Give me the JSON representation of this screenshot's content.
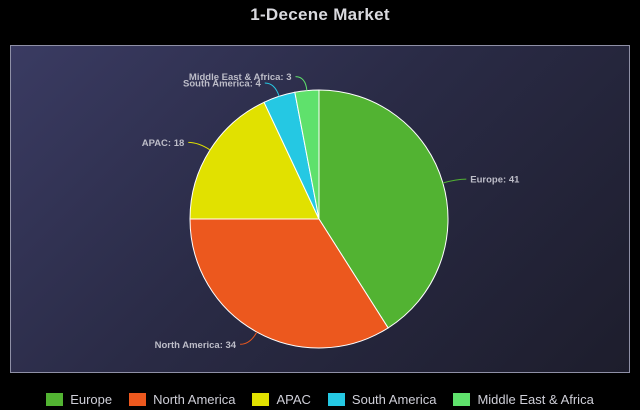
{
  "chart_data": {
    "type": "pie",
    "title": "1-Decene Market",
    "slices": [
      {
        "name": "Europe",
        "value": 41,
        "color": "#52b332",
        "label": "Europe: 41"
      },
      {
        "name": "North America",
        "value": 34,
        "color": "#ec581e",
        "label": "North America: 34"
      },
      {
        "name": "APAC",
        "value": 18,
        "color": "#e1e100",
        "label": "APAC: 18"
      },
      {
        "name": "South America",
        "value": 4,
        "color": "#25c8e3",
        "label": "South America: 4"
      },
      {
        "name": "Middle East & Africa",
        "value": 3,
        "color": "#5fe16c",
        "label": "Middle East & Africa: 3"
      }
    ],
    "legend": {
      "position": "bottom"
    },
    "start_angle": "top, clockwise"
  }
}
